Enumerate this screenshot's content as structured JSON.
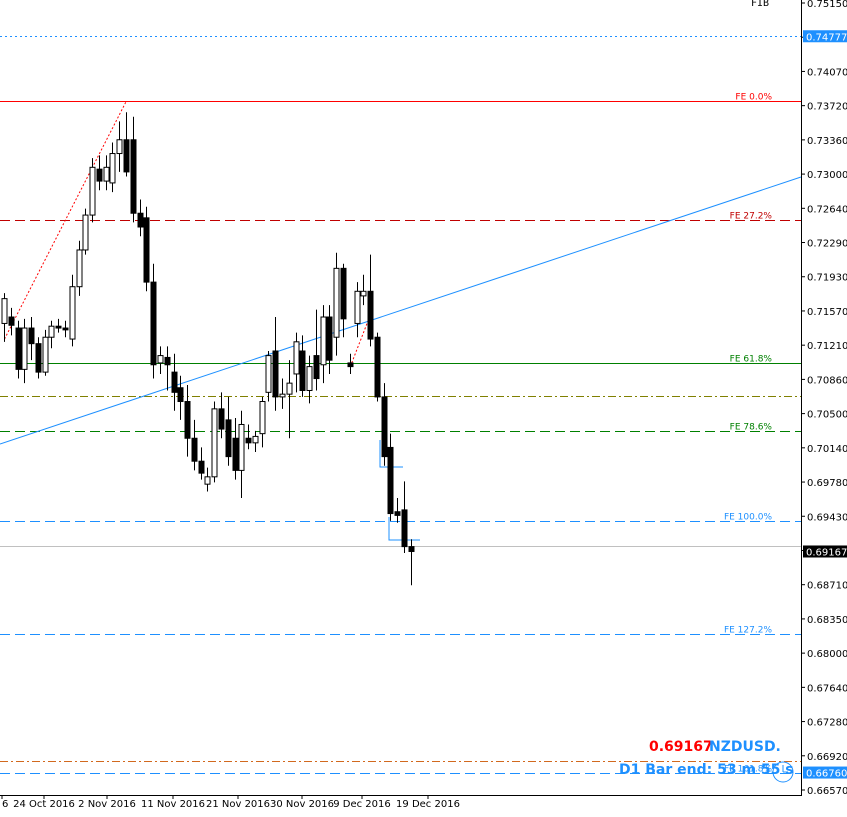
{
  "chart_data": {
    "type": "candlestick",
    "symbol": "NZDUSD.",
    "current_price": "0.69167",
    "bar_end_text": "D1 Bar end: 53 m 55 s",
    "top_mark": "FIB",
    "ylim": [
      0.6657,
      0.7515
    ],
    "y_ticks": [
      "0.75150",
      "0.74430",
      "0.74070",
      "0.73720",
      "0.73360",
      "0.73000",
      "0.72640",
      "0.72290",
      "0.71930",
      "0.71570",
      "0.71210",
      "0.70860",
      "0.70500",
      "0.70140",
      "0.69780",
      "0.69430",
      "0.69070",
      "0.68710",
      "0.68350",
      "0.68000",
      "0.67640",
      "0.67280",
      "0.66920",
      "0.66570"
    ],
    "x_ticks": [
      "6",
      "24 Oct 2016",
      "2 Nov 2016",
      "11 Nov 2016",
      "21 Nov 2016",
      "30 Nov 2016",
      "9 Dec 2016",
      "19 Dec 2016"
    ],
    "price_labels": [
      {
        "text": "0.74777",
        "value": 0.74777,
        "color": "#1e90ff"
      },
      {
        "text": "0.69167",
        "value": 0.69167,
        "color": "#000000"
      },
      {
        "text": "0.66760",
        "value": 0.6676,
        "color": "#1e90ff"
      }
    ],
    "levels": [
      {
        "label": "",
        "value": 0.74777,
        "color": "#1e90ff",
        "style": "dotted"
      },
      {
        "label": "FE 0.0%",
        "value": 0.74075,
        "color": "#ff0000",
        "style": "solid"
      },
      {
        "label": "FE 27.2%",
        "value": 0.7278,
        "color": "#c00000",
        "style": "dashed"
      },
      {
        "label": "FE 61.8%",
        "value": 0.7122,
        "color": "#008000",
        "style": "solid"
      },
      {
        "label": "",
        "value": 0.7086,
        "color": "#808000",
        "style": "dashdot"
      },
      {
        "label": "FE 78.6%",
        "value": 0.7048,
        "color": "#008000",
        "style": "dashed"
      },
      {
        "label": "FE 100.0%",
        "value": 0.695,
        "color": "#1e90ff",
        "style": "dashed"
      },
      {
        "label": "",
        "value": 0.6923,
        "color": "#c0c0c0",
        "style": "solid"
      },
      {
        "label": "FE 127.2%",
        "value": 0.6827,
        "color": "#1e90ff",
        "style": "dashed"
      },
      {
        "label": "",
        "value": 0.6689,
        "color": "#d2691e",
        "style": "dashdot"
      },
      {
        "label": "FE 161.8%",
        "value": 0.6676,
        "color": "#1e90ff",
        "style": "dashed"
      }
    ],
    "candles": [
      {
        "o": 0.7165,
        "h": 0.7198,
        "l": 0.7145,
        "c": 0.7192
      },
      {
        "o": 0.7172,
        "h": 0.7182,
        "l": 0.7152,
        "c": 0.7163
      },
      {
        "o": 0.716,
        "h": 0.7168,
        "l": 0.7105,
        "c": 0.7115
      },
      {
        "o": 0.7115,
        "h": 0.717,
        "l": 0.71,
        "c": 0.716
      },
      {
        "o": 0.716,
        "h": 0.7172,
        "l": 0.7125,
        "c": 0.7143
      },
      {
        "o": 0.7143,
        "h": 0.715,
        "l": 0.7105,
        "c": 0.7112
      },
      {
        "o": 0.7112,
        "h": 0.7158,
        "l": 0.7108,
        "c": 0.715
      },
      {
        "o": 0.715,
        "h": 0.7168,
        "l": 0.7138,
        "c": 0.7162
      },
      {
        "o": 0.7162,
        "h": 0.717,
        "l": 0.7155,
        "c": 0.716
      },
      {
        "o": 0.716,
        "h": 0.7168,
        "l": 0.715,
        "c": 0.7158
      },
      {
        "o": 0.7148,
        "h": 0.7218,
        "l": 0.714,
        "c": 0.7205
      },
      {
        "o": 0.7205,
        "h": 0.7255,
        "l": 0.7195,
        "c": 0.7245
      },
      {
        "o": 0.7245,
        "h": 0.729,
        "l": 0.724,
        "c": 0.7283
      },
      {
        "o": 0.7283,
        "h": 0.7345,
        "l": 0.7275,
        "c": 0.7335
      },
      {
        "o": 0.7333,
        "h": 0.7348,
        "l": 0.731,
        "c": 0.732
      },
      {
        "o": 0.732,
        "h": 0.7348,
        "l": 0.731,
        "c": 0.7335
      },
      {
        "o": 0.7318,
        "h": 0.7362,
        "l": 0.7308,
        "c": 0.735
      },
      {
        "o": 0.735,
        "h": 0.7385,
        "l": 0.733,
        "c": 0.7365
      },
      {
        "o": 0.7365,
        "h": 0.7395,
        "l": 0.7325,
        "c": 0.733
      },
      {
        "o": 0.7365,
        "h": 0.739,
        "l": 0.7275,
        "c": 0.7285
      },
      {
        "o": 0.7285,
        "h": 0.73,
        "l": 0.726,
        "c": 0.727
      },
      {
        "o": 0.728,
        "h": 0.7292,
        "l": 0.72,
        "c": 0.721
      },
      {
        "o": 0.721,
        "h": 0.723,
        "l": 0.7105,
        "c": 0.712
      },
      {
        "o": 0.7122,
        "h": 0.714,
        "l": 0.711,
        "c": 0.713
      },
      {
        "o": 0.7128,
        "h": 0.714,
        "l": 0.7092,
        "c": 0.712
      },
      {
        "o": 0.7112,
        "h": 0.7132,
        "l": 0.707,
        "c": 0.709
      },
      {
        "o": 0.7095,
        "h": 0.7108,
        "l": 0.706,
        "c": 0.708
      },
      {
        "o": 0.708,
        "h": 0.7098,
        "l": 0.702,
        "c": 0.704
      },
      {
        "o": 0.704,
        "h": 0.706,
        "l": 0.7005,
        "c": 0.7015
      },
      {
        "o": 0.7015,
        "h": 0.703,
        "l": 0.6995,
        "c": 0.7002
      },
      {
        "o": 0.699,
        "h": 0.7008,
        "l": 0.6982,
        "c": 0.6998
      },
      {
        "o": 0.6998,
        "h": 0.708,
        "l": 0.6992,
        "c": 0.7072
      },
      {
        "o": 0.7072,
        "h": 0.709,
        "l": 0.704,
        "c": 0.705
      },
      {
        "o": 0.706,
        "h": 0.7085,
        "l": 0.701,
        "c": 0.702
      },
      {
        "o": 0.704,
        "h": 0.7062,
        "l": 0.6995,
        "c": 0.7005
      },
      {
        "o": 0.7005,
        "h": 0.707,
        "l": 0.6975,
        "c": 0.7055
      },
      {
        "o": 0.704,
        "h": 0.7055,
        "l": 0.7028,
        "c": 0.7035
      },
      {
        "o": 0.7035,
        "h": 0.7048,
        "l": 0.7025,
        "c": 0.7042
      },
      {
        "o": 0.7045,
        "h": 0.7085,
        "l": 0.703,
        "c": 0.708
      },
      {
        "o": 0.709,
        "h": 0.7135,
        "l": 0.708,
        "c": 0.713
      },
      {
        "o": 0.7135,
        "h": 0.7172,
        "l": 0.707,
        "c": 0.7085
      },
      {
        "o": 0.7085,
        "h": 0.7105,
        "l": 0.7072,
        "c": 0.7088
      },
      {
        "o": 0.7088,
        "h": 0.7125,
        "l": 0.704,
        "c": 0.71
      },
      {
        "o": 0.711,
        "h": 0.7155,
        "l": 0.709,
        "c": 0.7145
      },
      {
        "o": 0.7135,
        "h": 0.7152,
        "l": 0.7085,
        "c": 0.7092
      },
      {
        "o": 0.7092,
        "h": 0.713,
        "l": 0.7078,
        "c": 0.7118
      },
      {
        "o": 0.713,
        "h": 0.718,
        "l": 0.7092,
        "c": 0.7105
      },
      {
        "o": 0.712,
        "h": 0.7185,
        "l": 0.71,
        "c": 0.7172
      },
      {
        "o": 0.7172,
        "h": 0.7185,
        "l": 0.711,
        "c": 0.7125
      },
      {
        "o": 0.715,
        "h": 0.7242,
        "l": 0.713,
        "c": 0.7225
      },
      {
        "o": 0.7225,
        "h": 0.723,
        "l": 0.715,
        "c": 0.717
      },
      {
        "o": 0.7122,
        "h": 0.7132,
        "l": 0.711,
        "c": 0.7118
      },
      {
        "o": 0.7165,
        "h": 0.721,
        "l": 0.715,
        "c": 0.72
      },
      {
        "o": 0.7195,
        "h": 0.7218,
        "l": 0.7185,
        "c": 0.72
      },
      {
        "o": 0.72,
        "h": 0.724,
        "l": 0.714,
        "c": 0.7148
      },
      {
        "o": 0.715,
        "h": 0.7155,
        "l": 0.708,
        "c": 0.7085
      },
      {
        "o": 0.7085,
        "h": 0.71,
        "l": 0.701,
        "c": 0.702
      },
      {
        "o": 0.703,
        "h": 0.7045,
        "l": 0.695,
        "c": 0.6958
      },
      {
        "o": 0.696,
        "h": 0.6975,
        "l": 0.6948,
        "c": 0.6956
      },
      {
        "o": 0.6962,
        "h": 0.6993,
        "l": 0.6915,
        "c": 0.6922
      },
      {
        "o": 0.6922,
        "h": 0.693,
        "l": 0.688,
        "c": 0.69167
      }
    ]
  }
}
